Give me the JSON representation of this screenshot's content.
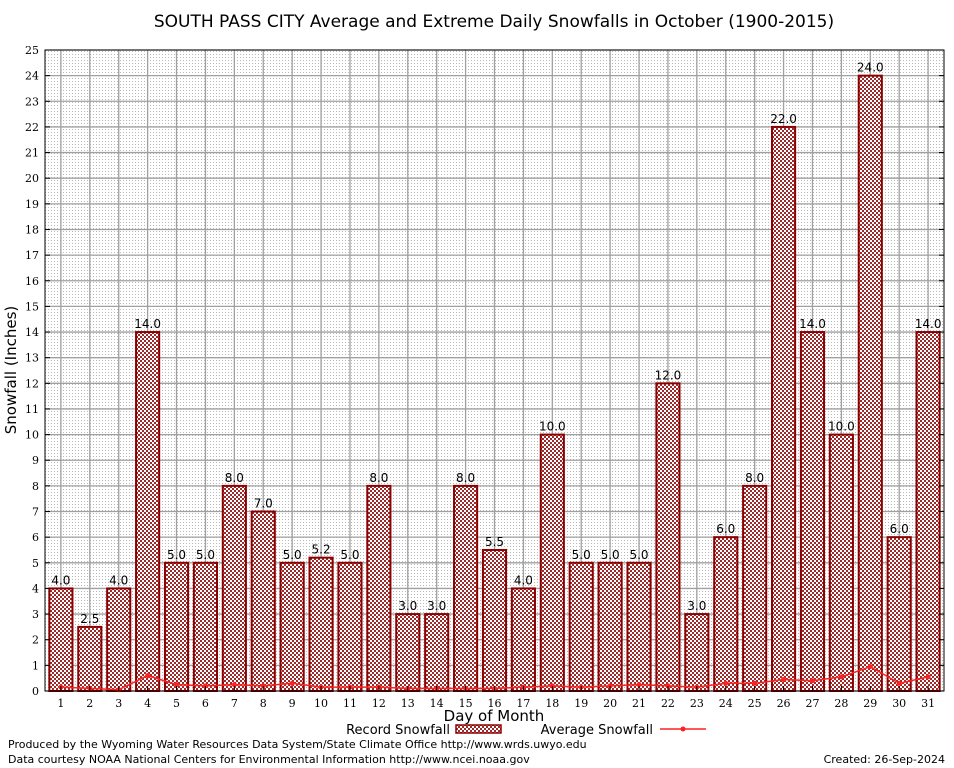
{
  "chart_data": {
    "type": "bar",
    "title": "SOUTH PASS CITY Average and Extreme Daily Snowfalls in October (1900-2015)",
    "xlabel": "Day of Month",
    "ylabel": "Snowfall (Inches)",
    "ylim": [
      0,
      25
    ],
    "yticks": [
      "0",
      "1",
      "2",
      "3",
      "4",
      "5",
      "6",
      "7",
      "8",
      "9",
      "10",
      "11",
      "12",
      "13",
      "14",
      "15",
      "16",
      "17",
      "18",
      "19",
      "20",
      "21",
      "22",
      "23",
      "24",
      "25"
    ],
    "categories": [
      "1",
      "2",
      "3",
      "4",
      "5",
      "6",
      "7",
      "8",
      "9",
      "10",
      "11",
      "12",
      "13",
      "14",
      "15",
      "16",
      "17",
      "18",
      "19",
      "20",
      "21",
      "22",
      "23",
      "24",
      "25",
      "26",
      "27",
      "28",
      "29",
      "30",
      "31"
    ],
    "series": [
      {
        "name": "Record Snowfall",
        "type": "bar",
        "color": "#8b0000",
        "values": [
          4.0,
          2.5,
          4.0,
          14.0,
          5.0,
          5.0,
          8.0,
          7.0,
          5.0,
          5.2,
          5.0,
          8.0,
          3.0,
          3.0,
          8.0,
          5.5,
          4.0,
          10.0,
          5.0,
          5.0,
          5.0,
          12.0,
          3.0,
          6.0,
          8.0,
          22.0,
          14.0,
          10.0,
          24.0,
          6.0,
          14.0
        ],
        "labels": [
          "4.0",
          "2.5",
          "4.0",
          "14.0",
          "5.0",
          "5.0",
          "8.0",
          "7.0",
          "5.0",
          "5.2",
          "5.0",
          "8.0",
          "3.0",
          "3.0",
          "8.0",
          "5.5",
          "4.0",
          "10.0",
          "5.0",
          "5.0",
          "5.0",
          "12.0",
          "3.0",
          "6.0",
          "8.0",
          "22.0",
          "14.0",
          "10.0",
          "24.0",
          "6.0",
          "14.0"
        ]
      },
      {
        "name": "Average Snowfall",
        "type": "line",
        "color": "#ff2020",
        "values": [
          0.15,
          0.1,
          0.05,
          0.6,
          0.25,
          0.2,
          0.25,
          0.2,
          0.3,
          0.15,
          0.15,
          0.15,
          0.1,
          0.1,
          0.1,
          0.1,
          0.15,
          0.2,
          0.15,
          0.2,
          0.25,
          0.2,
          0.15,
          0.3,
          0.3,
          0.45,
          0.4,
          0.55,
          0.95,
          0.3,
          0.55
        ]
      }
    ],
    "grid": true,
    "legend": "bottom"
  },
  "footer": {
    "produced_by": "Produced by the Wyoming Water Resources Data System/State Climate Office http://www.wrds.uwyo.edu",
    "courtesy": "Data courtesy NOAA National Centers for Environmental Information http://www.ncei.noaa.gov",
    "created": "Created: 26-Sep-2024"
  }
}
